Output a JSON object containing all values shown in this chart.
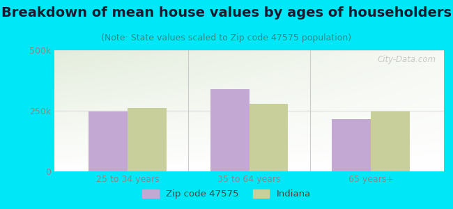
{
  "title": "Breakdown of mean house values by ages of householders",
  "subtitle": "(Note: State values scaled to Zip code 47575 population)",
  "categories": [
    "25 to 34 years",
    "35 to 64 years",
    "65 years+"
  ],
  "zip_values": [
    248000,
    340000,
    215000
  ],
  "state_values": [
    262000,
    278000,
    248000
  ],
  "ylim": [
    0,
    500000
  ],
  "ytick_labels": [
    "0",
    "250k",
    "500k"
  ],
  "bar_width": 0.32,
  "zip_color": "#c4a8d4",
  "state_color": "#c8cf9a",
  "background_outer": "#00e8f8",
  "legend_zip_label": "Zip code 47575",
  "legend_state_label": "Indiana",
  "watermark": "City-Data.com",
  "title_fontsize": 14,
  "subtitle_fontsize": 9,
  "tick_fontsize": 9,
  "xlabel_fontsize": 9,
  "title_color": "#1a1a2e",
  "subtitle_color": "#2a8a8a",
  "tick_color": "#888888",
  "divider_color": "#cccccc",
  "grid_color": "#dddddd"
}
